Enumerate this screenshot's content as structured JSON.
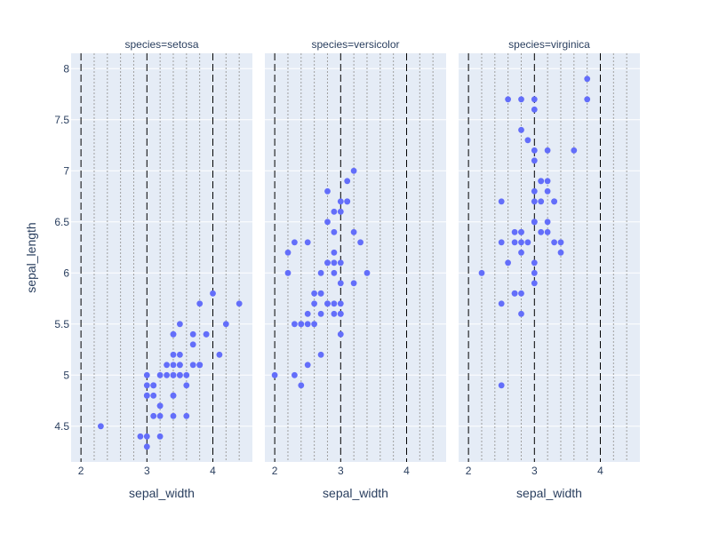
{
  "chart_data": {
    "type": "scatter",
    "marker_color": "#636efa",
    "plot_bg": "#e5ecf6",
    "grid_color": "#ffffff",
    "minor_grid_color": "#a0a0a0",
    "major_line_color": "#000000",
    "y_axis": {
      "title": "sepal_length",
      "range": [
        4.15,
        8.15
      ],
      "ticks": [
        4.5,
        5,
        5.5,
        6,
        6.5,
        7,
        7.5,
        8
      ],
      "tick_labels": [
        "4.5",
        "5",
        "5.5",
        "6",
        "6.5",
        "7",
        "7.5",
        "8"
      ]
    },
    "x_axis": {
      "title": "sepal_width",
      "range": [
        1.85,
        4.6
      ],
      "ticks": [
        2,
        3,
        4
      ],
      "tick_labels": [
        "2",
        "3",
        "4"
      ],
      "minor_ticks": [
        2.2,
        2.4,
        2.6,
        2.8,
        3.2,
        3.4,
        3.6,
        3.8,
        4.2,
        4.4
      ]
    },
    "facets": [
      {
        "title": "species=setosa",
        "points": [
          [
            3.5,
            5.1
          ],
          [
            3.0,
            4.9
          ],
          [
            3.2,
            4.7
          ],
          [
            3.1,
            4.6
          ],
          [
            3.6,
            5.0
          ],
          [
            3.9,
            5.4
          ],
          [
            3.4,
            4.6
          ],
          [
            3.4,
            5.0
          ],
          [
            2.9,
            4.4
          ],
          [
            3.1,
            4.9
          ],
          [
            3.7,
            5.4
          ],
          [
            3.4,
            4.8
          ],
          [
            3.0,
            4.8
          ],
          [
            3.0,
            4.3
          ],
          [
            4.0,
            5.8
          ],
          [
            4.4,
            5.7
          ],
          [
            3.9,
            5.4
          ],
          [
            3.5,
            5.1
          ],
          [
            3.8,
            5.7
          ],
          [
            3.8,
            5.1
          ],
          [
            3.4,
            5.4
          ],
          [
            3.7,
            5.1
          ],
          [
            3.6,
            4.6
          ],
          [
            3.3,
            5.1
          ],
          [
            3.4,
            4.8
          ],
          [
            3.0,
            5.0
          ],
          [
            3.4,
            5.0
          ],
          [
            3.5,
            5.2
          ],
          [
            3.4,
            5.2
          ],
          [
            3.2,
            4.7
          ],
          [
            3.1,
            4.8
          ],
          [
            3.4,
            5.4
          ],
          [
            4.1,
            5.2
          ],
          [
            4.2,
            5.5
          ],
          [
            3.1,
            4.9
          ],
          [
            3.2,
            5.0
          ],
          [
            3.5,
            5.5
          ],
          [
            3.6,
            4.9
          ],
          [
            3.0,
            4.4
          ],
          [
            3.4,
            5.1
          ],
          [
            3.5,
            5.0
          ],
          [
            2.3,
            4.5
          ],
          [
            3.2,
            4.4
          ],
          [
            3.5,
            5.0
          ],
          [
            3.8,
            5.1
          ],
          [
            3.0,
            4.8
          ],
          [
            3.8,
            5.1
          ],
          [
            3.2,
            4.6
          ],
          [
            3.7,
            5.3
          ],
          [
            3.3,
            5.0
          ]
        ]
      },
      {
        "title": "species=versicolor",
        "points": [
          [
            3.2,
            7.0
          ],
          [
            3.2,
            6.4
          ],
          [
            3.1,
            6.9
          ],
          [
            2.3,
            5.5
          ],
          [
            2.8,
            6.5
          ],
          [
            2.8,
            5.7
          ],
          [
            3.3,
            6.3
          ],
          [
            2.4,
            4.9
          ],
          [
            2.9,
            6.6
          ],
          [
            2.7,
            5.2
          ],
          [
            2.0,
            5.0
          ],
          [
            3.0,
            5.9
          ],
          [
            2.2,
            6.0
          ],
          [
            2.9,
            6.1
          ],
          [
            2.9,
            5.6
          ],
          [
            3.1,
            6.7
          ],
          [
            3.0,
            5.6
          ],
          [
            2.7,
            5.8
          ],
          [
            2.2,
            6.2
          ],
          [
            2.5,
            5.6
          ],
          [
            3.2,
            5.9
          ],
          [
            2.8,
            6.1
          ],
          [
            2.5,
            6.3
          ],
          [
            2.8,
            6.1
          ],
          [
            2.9,
            6.4
          ],
          [
            3.0,
            6.6
          ],
          [
            2.8,
            6.8
          ],
          [
            3.0,
            6.7
          ],
          [
            2.9,
            6.0
          ],
          [
            2.6,
            5.7
          ],
          [
            2.4,
            5.5
          ],
          [
            2.4,
            5.5
          ],
          [
            2.7,
            5.8
          ],
          [
            2.7,
            6.0
          ],
          [
            3.0,
            5.4
          ],
          [
            3.4,
            6.0
          ],
          [
            3.1,
            6.7
          ],
          [
            2.3,
            6.3
          ],
          [
            3.0,
            5.6
          ],
          [
            2.5,
            5.5
          ],
          [
            2.6,
            5.5
          ],
          [
            3.0,
            6.1
          ],
          [
            2.6,
            5.8
          ],
          [
            2.3,
            5.0
          ],
          [
            2.7,
            5.6
          ],
          [
            3.0,
            5.7
          ],
          [
            2.9,
            5.7
          ],
          [
            2.9,
            6.2
          ],
          [
            2.5,
            5.1
          ],
          [
            2.8,
            5.7
          ]
        ]
      },
      {
        "title": "species=virginica",
        "points": [
          [
            3.3,
            6.3
          ],
          [
            2.7,
            5.8
          ],
          [
            3.0,
            7.1
          ],
          [
            2.9,
            6.3
          ],
          [
            3.0,
            6.5
          ],
          [
            3.0,
            7.6
          ],
          [
            2.5,
            4.9
          ],
          [
            2.9,
            7.3
          ],
          [
            2.5,
            6.7
          ],
          [
            3.6,
            7.2
          ],
          [
            3.2,
            6.5
          ],
          [
            2.7,
            6.4
          ],
          [
            3.0,
            6.8
          ],
          [
            2.5,
            5.7
          ],
          [
            2.8,
            5.8
          ],
          [
            3.2,
            6.4
          ],
          [
            3.0,
            6.5
          ],
          [
            3.8,
            7.7
          ],
          [
            2.6,
            7.7
          ],
          [
            2.2,
            6.0
          ],
          [
            3.2,
            6.9
          ],
          [
            2.8,
            5.6
          ],
          [
            2.8,
            7.7
          ],
          [
            2.7,
            6.3
          ],
          [
            3.3,
            6.7
          ],
          [
            3.2,
            7.2
          ],
          [
            2.8,
            6.2
          ],
          [
            3.0,
            6.1
          ],
          [
            2.8,
            6.4
          ],
          [
            3.0,
            7.2
          ],
          [
            2.8,
            7.4
          ],
          [
            3.8,
            7.9
          ],
          [
            2.8,
            6.4
          ],
          [
            2.8,
            6.3
          ],
          [
            2.6,
            6.1
          ],
          [
            3.0,
            7.7
          ],
          [
            3.4,
            6.3
          ],
          [
            3.1,
            6.4
          ],
          [
            3.0,
            6.0
          ],
          [
            3.1,
            6.9
          ],
          [
            3.1,
            6.7
          ],
          [
            3.1,
            6.9
          ],
          [
            2.7,
            5.8
          ],
          [
            3.2,
            6.8
          ],
          [
            3.3,
            6.7
          ],
          [
            3.0,
            6.7
          ],
          [
            2.5,
            6.3
          ],
          [
            3.0,
            6.5
          ],
          [
            3.4,
            6.2
          ],
          [
            3.0,
            5.9
          ]
        ]
      }
    ]
  }
}
